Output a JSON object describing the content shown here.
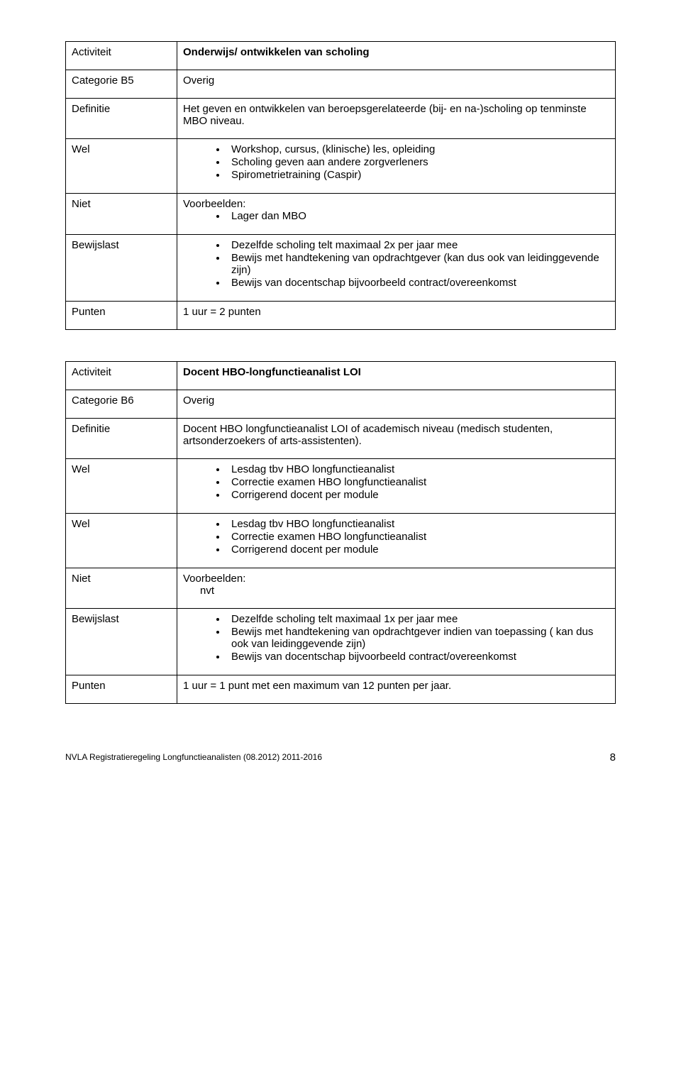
{
  "table1": {
    "rows": {
      "activiteit": {
        "label": "Activiteit",
        "value": "Onderwijs/ ontwikkelen van scholing"
      },
      "categorie": {
        "label": "Categorie B5",
        "value": "Overig"
      },
      "definitie": {
        "label": "Definitie",
        "value": "Het geven en ontwikkelen van beroepsgerelateerde (bij- en na-)scholing op tenminste MBO niveau."
      },
      "wel": {
        "label": "Wel",
        "bullets": [
          "Workshop, cursus, (klinische) les, opleiding",
          "Scholing geven aan andere zorgverleners",
          "Spirometrietraining (Caspir)"
        ]
      },
      "niet": {
        "label": "Niet",
        "header": "Voorbeelden:",
        "bullets": [
          "Lager dan MBO"
        ]
      },
      "bewijslast": {
        "label": "Bewijslast",
        "bullets": [
          "Dezelfde scholing telt maximaal 2x per jaar mee",
          "Bewijs met handtekening van opdrachtgever (kan dus ook van leidinggevende zijn)",
          "Bewijs van docentschap bijvoorbeeld contract/overeenkomst"
        ]
      },
      "punten": {
        "label": "Punten",
        "value": "1 uur = 2 punten"
      }
    }
  },
  "table2": {
    "rows": {
      "activiteit": {
        "label": "Activiteit",
        "value": "Docent HBO-longfunctieanalist LOI"
      },
      "categorie": {
        "label": "Categorie B6",
        "value": "Overig"
      },
      "definitie": {
        "label": "Definitie",
        "value": "Docent HBO longfunctieanalist LOI of academisch niveau (medisch studenten, artsonderzoekers of arts-assistenten)."
      },
      "wel1": {
        "label": "Wel",
        "bullets": [
          "Lesdag tbv HBO longfunctieanalist",
          "Correctie examen HBO longfunctieanalist",
          "Corrigerend docent per module"
        ]
      },
      "wel2": {
        "label": "Wel",
        "bullets": [
          "Lesdag tbv HBO longfunctieanalist",
          "Correctie examen HBO longfunctieanalist",
          "Corrigerend docent per module"
        ]
      },
      "niet": {
        "label": "Niet",
        "header": "Voorbeelden:",
        "nvt": "nvt"
      },
      "bewijslast": {
        "label": "Bewijslast",
        "bullets": [
          "Dezelfde scholing telt maximaal 1x per jaar mee",
          "Bewijs met handtekening van opdrachtgever indien van toepassing ( kan dus ook van leidinggevende zijn)",
          "Bewijs van docentschap bijvoorbeeld contract/overeenkomst"
        ]
      },
      "punten": {
        "label": "Punten",
        "value": "1 uur = 1 punt met een maximum van 12 punten per jaar."
      }
    }
  },
  "footer": {
    "text": "NVLA   Registratieregeling Longfunctieanalisten (08.2012) 2011-2016",
    "page": "8"
  }
}
